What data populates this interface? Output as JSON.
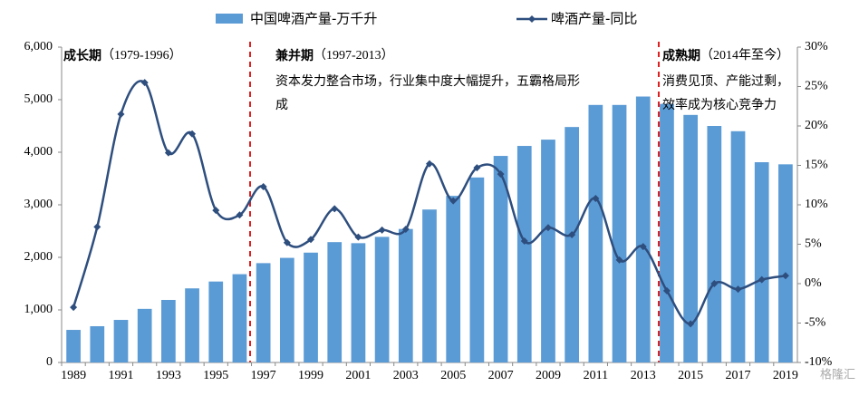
{
  "chart_data": {
    "type": "bar_line",
    "categories": [
      "1989",
      null,
      "1991",
      null,
      "1993",
      null,
      "1995",
      null,
      "1997",
      null,
      "1999",
      null,
      "2001",
      null,
      "2003",
      null,
      "2005",
      null,
      "2007",
      null,
      "2009",
      null,
      "2011",
      null,
      "2013",
      null,
      "2015",
      null,
      "2017",
      null,
      "2019"
    ],
    "series": [
      {
        "name": "中国啤酒产量-万千升",
        "type": "bar",
        "color": "#5b9bd5",
        "values": [
          620,
          690,
          810,
          1020,
          1190,
          1410,
          1540,
          1680,
          1890,
          1990,
          2090,
          2290,
          2270,
          2390,
          2540,
          2910,
          3170,
          3520,
          3930,
          4120,
          4240,
          4480,
          4900,
          4900,
          5060,
          4920,
          4710,
          4500,
          4400,
          3810,
          3770
        ]
      },
      {
        "name": "啤酒产量-同比",
        "type": "line",
        "axis": "y2",
        "color": "#2e4e7e",
        "values": [
          -3.0,
          7.2,
          21.5,
          25.5,
          16.6,
          19.0,
          9.3,
          8.7,
          12.3,
          5.2,
          5.6,
          9.5,
          5.9,
          6.8,
          6.9,
          15.2,
          10.5,
          14.7,
          13.9,
          5.4,
          7.1,
          6.2,
          10.8,
          3.0,
          4.7,
          -0.9,
          -5.1,
          0.0,
          -0.7,
          0.5,
          1.0
        ]
      }
    ],
    "ylim": [
      0,
      6000
    ],
    "yticks": [
      0,
      {
        "value": 1000,
        "label": "1,000"
      },
      {
        "value": 2000,
        "label": "2,000"
      },
      {
        "value": 3000,
        "label": "3,000"
      },
      {
        "value": 4000,
        "label": "4,000"
      },
      {
        "value": 5000,
        "label": "5,000"
      },
      {
        "value": 6000,
        "label": "6,000"
      }
    ],
    "y2lim": [
      -10,
      30
    ],
    "y2ticks": [
      {
        "value": -10,
        "label": "-10%"
      },
      {
        "value": -5,
        "label": "-5%"
      },
      {
        "value": 0,
        "label": "0%"
      },
      {
        "value": 5,
        "label": "5%"
      },
      {
        "value": 10,
        "label": "10%"
      },
      {
        "value": 15,
        "label": "15%"
      },
      {
        "value": 20,
        "label": "20%"
      },
      {
        "value": 25,
        "label": "25%"
      },
      {
        "value": 30,
        "label": "30%"
      }
    ],
    "annotations": [
      {
        "title": "成长期",
        "range": "（1979-1996）",
        "lines": []
      },
      {
        "title": "兼并期",
        "range": "（1997-2013）",
        "lines": [
          "资本发力整合市场，行业集中度大幅提升，五霸格局形",
          "成"
        ]
      },
      {
        "title": "成熟期",
        "range": "（2014年至今）",
        "lines": [
          "消费见顶、产能过剩，",
          "效率成为核心竞争力"
        ]
      }
    ],
    "watermark": "格隆汇"
  }
}
